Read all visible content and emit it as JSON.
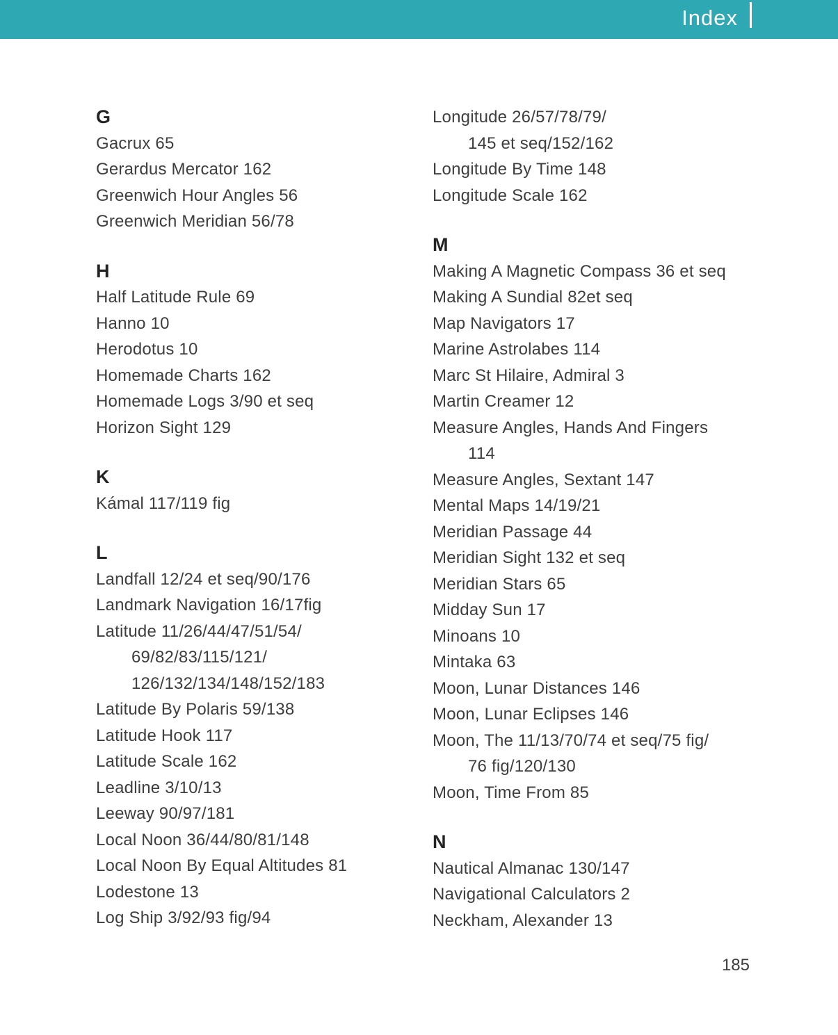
{
  "header": {
    "title": "Index",
    "bar_color": "#2ea8b2"
  },
  "page": {
    "number": "185"
  },
  "index": {
    "columns": [
      {
        "sections": [
          {
            "heading": "G",
            "entries": [
              [
                "Gacrux 65"
              ],
              [
                "Gerardus Mercator 162"
              ],
              [
                "Greenwich Hour Angles 56"
              ],
              [
                "Greenwich Meridian 56/78"
              ]
            ]
          },
          {
            "heading": "H",
            "entries": [
              [
                "Half Latitude Rule 69"
              ],
              [
                "Hanno 10"
              ],
              [
                "Herodotus 10"
              ],
              [
                "Homemade Charts 162"
              ],
              [
                "Homemade Logs 3/90 et seq"
              ],
              [
                "Horizon Sight 129"
              ]
            ]
          },
          {
            "heading": "K",
            "entries": [
              [
                "Kámal 117/119 fig"
              ]
            ]
          },
          {
            "heading": "L",
            "entries": [
              [
                "Landfall 12/24 et seq/90/176"
              ],
              [
                "Landmark Navigation 16/17fig"
              ],
              [
                "Latitude 11/26/44/47/51/54/",
                "69/82/83/115/121/",
                "126/132/134/148/152/183"
              ],
              [
                "Latitude By Polaris 59/138"
              ],
              [
                "Latitude Hook 117"
              ],
              [
                "Latitude Scale 162"
              ],
              [
                "Leadline 3/10/13"
              ],
              [
                "Leeway 90/97/181"
              ],
              [
                "Local Noon 36/44/80/81/148"
              ],
              [
                "Local Noon By Equal Altitudes 81"
              ],
              [
                "Lodestone 13"
              ],
              [
                "Log Ship 3/92/93 fig/94"
              ]
            ]
          }
        ]
      },
      {
        "sections": [
          {
            "heading": "",
            "entries": [
              [
                "Longitude 26/57/78/79/",
                "145 et seq/152/162"
              ],
              [
                "Longitude By Time 148"
              ],
              [
                "Longitude Scale 162"
              ]
            ]
          },
          {
            "heading": "M",
            "entries": [
              [
                "Making A Magnetic Compass 36 et seq"
              ],
              [
                "Making A Sundial 82et seq"
              ],
              [
                "Map Navigators 17"
              ],
              [
                "Marine Astrolabes 114"
              ],
              [
                "Marc St Hilaire, Admiral 3"
              ],
              [
                "Martin Creamer 12"
              ],
              [
                "Measure Angles, Hands And Fingers",
                "114"
              ],
              [
                "Measure Angles, Sextant 147"
              ],
              [
                "Mental Maps 14/19/21"
              ],
              [
                "Meridian Passage 44"
              ],
              [
                "Meridian Sight 132 et seq"
              ],
              [
                "Meridian Stars 65"
              ],
              [
                "Midday Sun 17"
              ],
              [
                "Minoans 10"
              ],
              [
                "Mintaka 63"
              ],
              [
                "Moon, Lunar Distances 146"
              ],
              [
                "Moon, Lunar Eclipses 146"
              ],
              [
                "Moon, The 11/13/70/74 et seq/75 fig/",
                "76 fig/120/130"
              ],
              [
                "Moon, Time From 85"
              ]
            ]
          },
          {
            "heading": "N",
            "entries": [
              [
                "Nautical Almanac 130/147"
              ],
              [
                "Navigational Calculators 2"
              ],
              [
                "Neckham, Alexander 13"
              ]
            ]
          }
        ]
      }
    ]
  }
}
